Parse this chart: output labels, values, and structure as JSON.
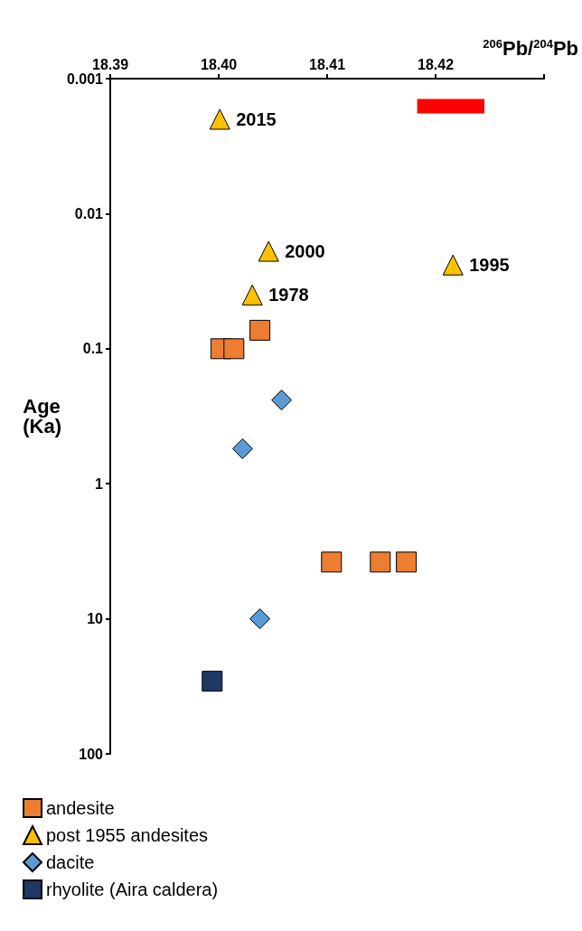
{
  "chart_data": {
    "type": "scatter",
    "xlabel": "$^{206}$Pb/$^{204}$Pb",
    "ylabel": "Age\n(Ka)",
    "xlim": [
      18.39,
      18.43
    ],
    "xticks": [
      18.39,
      {
        "value": 18.4,
        "label": "18.40"
      },
      18.41,
      18.42,
      {
        "value": 18.43,
        "label": null
      }
    ],
    "ylim": [
      100,
      0.001
    ],
    "yticks": [
      0.001,
      0.01,
      0.1,
      1,
      10,
      100
    ],
    "log": "y",
    "grid": false,
    "legend": "bottom left",
    "series": [
      {
        "name": "andesite",
        "color": "#ed7d31",
        "marker": "square",
        "x": [
          18.4038,
          18.4002,
          18.4014,
          18.4104,
          18.4149,
          18.4173
        ],
        "values": [
          0.073,
          0.1,
          0.1,
          3.8,
          3.8,
          3.8
        ]
      },
      {
        "name": "post 1955 andesites",
        "color": "#ffc000",
        "marker": "triangle",
        "x": [
          18.4001,
          18.4046,
          18.4216,
          18.4031
        ],
        "values": [
          0.002,
          0.019,
          0.024,
          0.04
        ]
      },
      {
        "name": "dacite",
        "color": "#5b9bd5",
        "marker": "diamond",
        "x": [
          18.4058,
          18.4022,
          18.4038
        ],
        "values": [
          0.24,
          0.55,
          10
        ]
      },
      {
        "name": "rhyolite (Aira caldera)",
        "color": "#1f3864",
        "marker": "square",
        "x": [
          18.3994
        ],
        "values": [
          29
        ]
      },
      {
        "type": "line",
        "color": "#ff0000",
        "x": [
          18.4183,
          18.4245
        ],
        "values": [
          0.0016,
          0.0016
        ]
      }
    ],
    "annotations": [
      {
        "text": "2015",
        "x": 18.4001,
        "y": 0.002
      },
      {
        "text": "2000",
        "x": 18.4046,
        "y": 0.019
      },
      {
        "text": "1995",
        "x": 18.4216,
        "y": 0.024
      },
      {
        "text": "1978",
        "x": 18.4031,
        "y": 0.04
      }
    ]
  }
}
